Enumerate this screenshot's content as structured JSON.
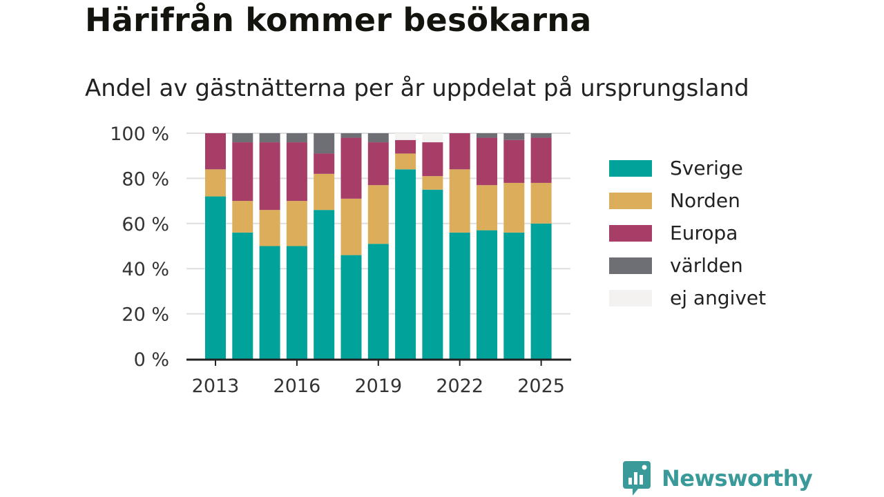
{
  "title": "Härifrån kommer besökarna",
  "subtitle": "Andel av gästnätterna per år uppdelat på ursprungsland",
  "brand": {
    "name": "Newsworthy",
    "logo_icon": "bar-chart-speech-bubble-icon",
    "color": "#3a9a9a"
  },
  "chart_data": {
    "type": "bar",
    "stacked": true,
    "categories": [
      "2013",
      "2014",
      "2015",
      "2016",
      "2017",
      "2018",
      "2019",
      "2020",
      "2021",
      "2022",
      "2023",
      "2024",
      "2025"
    ],
    "x_tick_labels": [
      "2013",
      "2016",
      "2019",
      "2022",
      "2025"
    ],
    "y_tick_labels": [
      "0 %",
      "20 %",
      "40 %",
      "60 %",
      "80 %",
      "100 %"
    ],
    "ylim": [
      0,
      100
    ],
    "grid": true,
    "legend_position": "right",
    "series": [
      {
        "name": "Sverige",
        "color": "#00a29a",
        "values": [
          72,
          56,
          50,
          50,
          66,
          46,
          51,
          84,
          75,
          56,
          57,
          56,
          60
        ]
      },
      {
        "name": "Norden",
        "color": "#dcae5c",
        "values": [
          12,
          14,
          16,
          20,
          16,
          25,
          26,
          7,
          6,
          28,
          20,
          22,
          18
        ]
      },
      {
        "name": "Europa",
        "color": "#a63e68",
        "values": [
          16,
          26,
          30,
          26,
          9,
          27,
          19,
          6,
          15,
          16,
          21,
          19,
          20
        ]
      },
      {
        "name": "världen",
        "color": "#6e6e75",
        "values": [
          0,
          4,
          4,
          4,
          9,
          2,
          4,
          0,
          0,
          0,
          2,
          3,
          2
        ]
      },
      {
        "name": "ej angivet",
        "color": "#f3f2f0",
        "values": [
          0,
          0,
          0,
          0,
          0,
          0,
          0,
          3,
          4,
          0,
          0,
          0,
          0
        ]
      }
    ]
  }
}
